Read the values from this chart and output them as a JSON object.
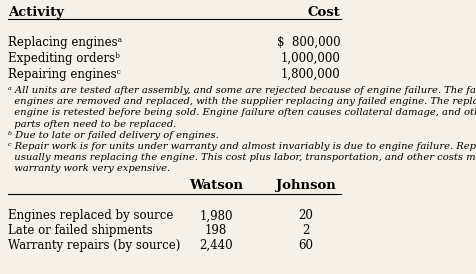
{
  "bg_color": "#f5f0e8",
  "title_activity": "Activity",
  "title_cost": "Cost",
  "rows": [
    {
      "activity": "Replacing enginesᵃ",
      "cost": "$  800,000"
    },
    {
      "activity": "Expediting ordersᵇ",
      "cost": "1,000,000"
    },
    {
      "activity": "Repairing enginesᶜ",
      "cost": "1,800,000"
    }
  ],
  "footnotes": [
    "ᵃ All units are tested after assembly, and some are rejected because of engine failure. The failed",
    "  engines are removed and replaced, with the supplier replacing any failed engine. The replaced",
    "  engine is retested before being sold. Engine failure often causes collateral damage, and other",
    "  parts often need to be replaced.",
    "ᵇ Due to late or failed delivery of engines.",
    "ᶜ Repair work is for units under warranty and almost invariably is due to engine failure. Repair",
    "  usually means replacing the engine. This cost plus labor, transportation, and other costs make",
    "  warranty work very expensive."
  ],
  "col_watson": "Watson",
  "col_johnson": "Johnson",
  "bottom_rows": [
    {
      "label": "Engines replaced by source",
      "watson": "1,980",
      "johnson": "20"
    },
    {
      "label": "Late or failed shipments",
      "watson": "198",
      "johnson": "2"
    },
    {
      "label": "Warranty repairs (by source)",
      "watson": "2,440",
      "johnson": "60"
    }
  ],
  "font_family": "serif",
  "font_size_header": 9.5,
  "font_size_body": 8.5,
  "font_size_footnote": 7.2
}
